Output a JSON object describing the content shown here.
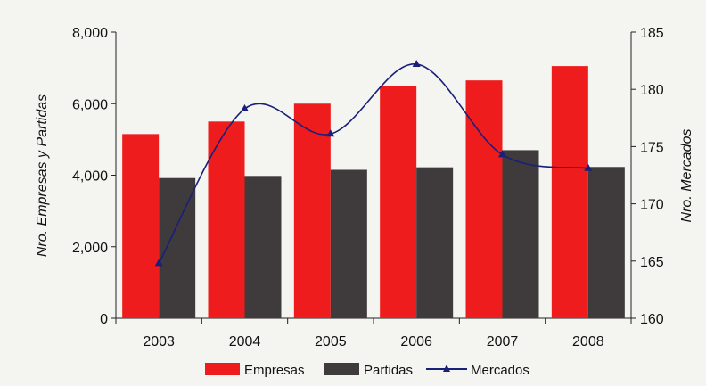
{
  "chart_data": {
    "type": "bar",
    "title": "",
    "categories": [
      "2003",
      "2004",
      "2005",
      "2006",
      "2007",
      "2008"
    ],
    "xlabel": "",
    "ylabel": "Nro. Empresas y Partidas",
    "y2label": "Nro. Mercados",
    "ylim": [
      0,
      8000
    ],
    "y2lim": [
      160,
      185
    ],
    "yticks": [
      "0",
      "2,000",
      "4,000",
      "6,000",
      "8,000"
    ],
    "y2ticks": [
      "160",
      "165",
      "170",
      "175",
      "180",
      "185"
    ],
    "grid": false,
    "legend_position": "bottom",
    "series": [
      {
        "name": "Empresas",
        "type": "bar",
        "axis": "left",
        "color": "#ee1c1c",
        "values": [
          5150,
          5500,
          6000,
          6500,
          6650,
          7050
        ]
      },
      {
        "name": "Partidas",
        "type": "bar",
        "axis": "left",
        "color": "#3f3b3c",
        "values": [
          3920,
          3980,
          4150,
          4220,
          4700,
          4230
        ]
      },
      {
        "name": "Mercados",
        "type": "line",
        "axis": "right",
        "color": "#1a1f7a",
        "marker": "triangle",
        "smooth": true,
        "values": [
          164.8,
          178.3,
          176.1,
          182.2,
          174.3,
          173.1
        ]
      }
    ]
  }
}
